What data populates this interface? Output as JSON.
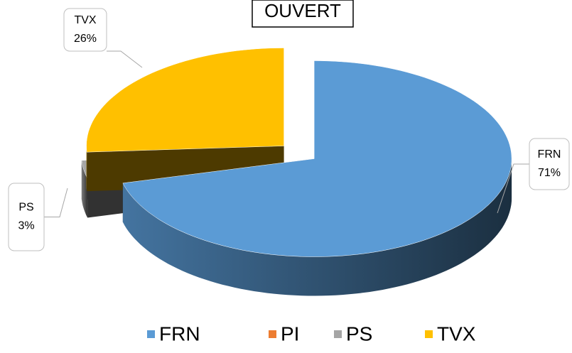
{
  "chart_data": {
    "type": "pie3d",
    "title": "OUVERT",
    "categories": [
      "FRN",
      "PI",
      "PS",
      "TVX"
    ],
    "values": [
      71,
      0,
      3,
      26
    ],
    "value_labels": [
      "71%",
      null,
      "3%",
      "26%"
    ],
    "colors": [
      "#5b9bd5",
      "#ed7d31",
      "#a5a5a5",
      "#ffc000"
    ],
    "legend": "bottom"
  }
}
